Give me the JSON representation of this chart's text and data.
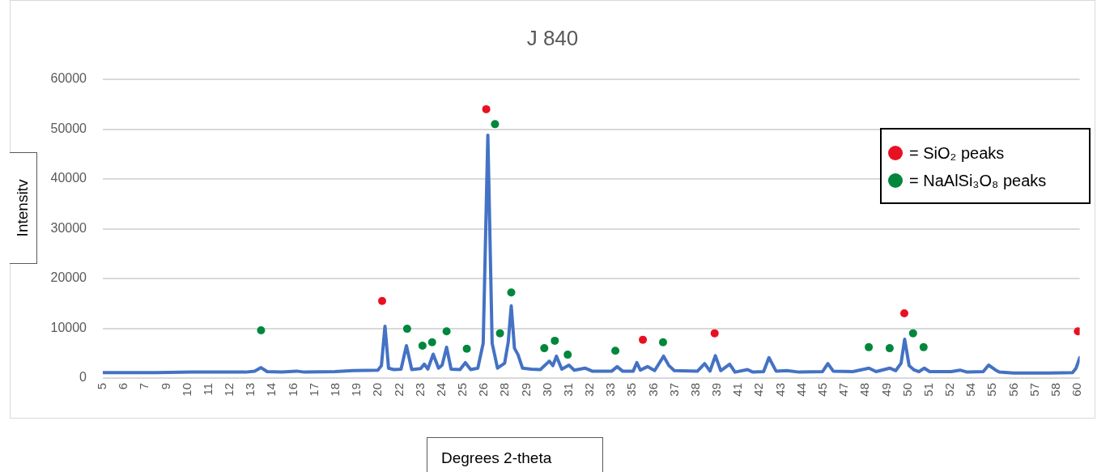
{
  "chart_data": {
    "type": "line",
    "title": "J 840",
    "xlabel": "Degrees 2-theta",
    "ylabel": "Intensitv",
    "xlim": [
      5,
      59.7
    ],
    "xticks": [
      {
        "value": 5,
        "label": "5"
      },
      {
        "value": 6.19,
        "label": "6"
      },
      {
        "value": 7.37,
        "label": "7"
      },
      {
        "value": 8.56,
        "label": "9"
      },
      {
        "value": 9.75,
        "label": "10"
      },
      {
        "value": 10.93,
        "label": "11"
      },
      {
        "value": 12.12,
        "label": "12"
      },
      {
        "value": 13.31,
        "label": "13"
      },
      {
        "value": 14.49,
        "label": "14"
      },
      {
        "value": 15.68,
        "label": "16"
      },
      {
        "value": 16.87,
        "label": "17"
      },
      {
        "value": 18.05,
        "label": "18"
      },
      {
        "value": 19.24,
        "label": "19"
      },
      {
        "value": 20.42,
        "label": "20"
      },
      {
        "value": 21.61,
        "label": "22"
      },
      {
        "value": 22.8,
        "label": "23"
      },
      {
        "value": 23.98,
        "label": "24"
      },
      {
        "value": 25.17,
        "label": "25"
      },
      {
        "value": 26.36,
        "label": "26"
      },
      {
        "value": 27.54,
        "label": "28"
      },
      {
        "value": 28.73,
        "label": "29"
      },
      {
        "value": 29.92,
        "label": "30"
      },
      {
        "value": 31.1,
        "label": "31"
      },
      {
        "value": 32.29,
        "label": "32"
      },
      {
        "value": 33.48,
        "label": "33"
      },
      {
        "value": 34.66,
        "label": "35"
      },
      {
        "value": 35.85,
        "label": "36"
      },
      {
        "value": 37.04,
        "label": "37"
      },
      {
        "value": 38.22,
        "label": "38"
      },
      {
        "value": 39.41,
        "label": "39"
      },
      {
        "value": 40.6,
        "label": "41"
      },
      {
        "value": 41.78,
        "label": "42"
      },
      {
        "value": 42.97,
        "label": "43"
      },
      {
        "value": 44.15,
        "label": "44"
      },
      {
        "value": 45.34,
        "label": "45"
      },
      {
        "value": 46.53,
        "label": "47"
      },
      {
        "value": 47.71,
        "label": "48"
      },
      {
        "value": 48.9,
        "label": "49"
      },
      {
        "value": 50.09,
        "label": "50"
      },
      {
        "value": 51.27,
        "label": "51"
      },
      {
        "value": 52.46,
        "label": "52"
      },
      {
        "value": 53.65,
        "label": "54"
      },
      {
        "value": 54.83,
        "label": "55"
      },
      {
        "value": 56.02,
        "label": "56"
      },
      {
        "value": 57.21,
        "label": "57"
      },
      {
        "value": 58.39,
        "label": "58"
      },
      {
        "value": 59.58,
        "label": "60"
      }
    ],
    "ylim": [
      0,
      60000
    ],
    "yticks": [
      0,
      10000,
      20000,
      30000,
      40000,
      50000,
      60000
    ],
    "grid": "y",
    "legend": "top right",
    "series": [
      {
        "color": "#4472c4",
        "x": [
          5,
          8,
          10,
          13,
          13.5,
          13.86,
          14.2,
          15,
          15.85,
          16.3,
          18,
          19,
          20.4,
          20.6,
          20.8,
          21.0,
          21.3,
          21.7,
          22.0,
          22.3,
          22.8,
          23.0,
          23.2,
          23.5,
          23.8,
          24.0,
          24.25,
          24.5,
          25.0,
          25.3,
          25.6,
          26.0,
          26.3,
          26.56,
          26.8,
          27.1,
          27.5,
          27.7,
          27.87,
          28.05,
          28.25,
          28.5,
          29.0,
          29.5,
          30.0,
          30.2,
          30.4,
          30.7,
          31.1,
          31.4,
          32.0,
          32.4,
          33.5,
          33.8,
          34.1,
          34.7,
          34.9,
          35.1,
          35.5,
          35.9,
          36.4,
          36.7,
          37.0,
          38.3,
          38.7,
          39.0,
          39.3,
          39.6,
          40.1,
          40.4,
          41.1,
          41.4,
          42.0,
          42.3,
          42.7,
          43.3,
          44,
          45.3,
          45.6,
          45.9,
          47,
          47.9,
          48.3,
          49.06,
          49.4,
          49.7,
          49.9,
          50.15,
          50.4,
          50.7,
          51.0,
          51.3,
          52.5,
          53.0,
          53.4,
          54.3,
          54.6,
          55.0,
          55.2,
          56,
          58,
          59.3,
          59.5,
          59.7
        ],
        "values": [
          1100,
          1100,
          1200,
          1200,
          1400,
          2100,
          1300,
          1200,
          1400,
          1200,
          1300,
          1500,
          1600,
          2500,
          10400,
          2000,
          1700,
          1800,
          6500,
          1700,
          1900,
          2800,
          1800,
          4800,
          2000,
          2600,
          6200,
          1800,
          1700,
          3100,
          1700,
          2000,
          7000,
          48800,
          7000,
          2000,
          3000,
          7200,
          14500,
          6000,
          4700,
          2000,
          1800,
          1700,
          3400,
          2500,
          4400,
          1800,
          2600,
          1600,
          2000,
          1400,
          1400,
          2300,
          1400,
          1400,
          3100,
          1600,
          2300,
          1500,
          4400,
          2500,
          1500,
          1400,
          2900,
          1400,
          4500,
          1500,
          2800,
          1200,
          1700,
          1200,
          1300,
          4100,
          1400,
          1500,
          1200,
          1300,
          2900,
          1400,
          1300,
          2000,
          1300,
          2000,
          1500,
          3000,
          7800,
          2500,
          1700,
          1300,
          2000,
          1300,
          1300,
          1600,
          1200,
          1300,
          2600,
          1600,
          1200,
          1000,
          1000,
          1100,
          2000,
          4100
        ]
      },
      {
        "type": "scatter",
        "name": "= SiO₂ peaks",
        "color": "#e81123",
        "marker": "circle",
        "x": [
          20.64,
          26.47,
          35.24,
          39.26,
          49.88,
          59.6
        ],
        "values": [
          15500,
          54000,
          7700,
          9000,
          13000,
          9400
        ]
      },
      {
        "type": "scatter",
        "name": "= NaAlSi₃O₈ peaks",
        "color": "#00873c",
        "marker": "circle",
        "x": [
          13.86,
          22.04,
          22.9,
          23.44,
          24.25,
          25.38,
          26.96,
          27.24,
          27.87,
          29.72,
          30.31,
          31.03,
          33.7,
          36.37,
          47.89,
          49.06,
          50.37,
          50.96
        ],
        "values": [
          9600,
          9900,
          6500,
          7200,
          9400,
          5900,
          51000,
          9000,
          17200,
          6000,
          7500,
          4700,
          5500,
          7200,
          6200,
          6000,
          9000,
          6200
        ]
      }
    ]
  }
}
